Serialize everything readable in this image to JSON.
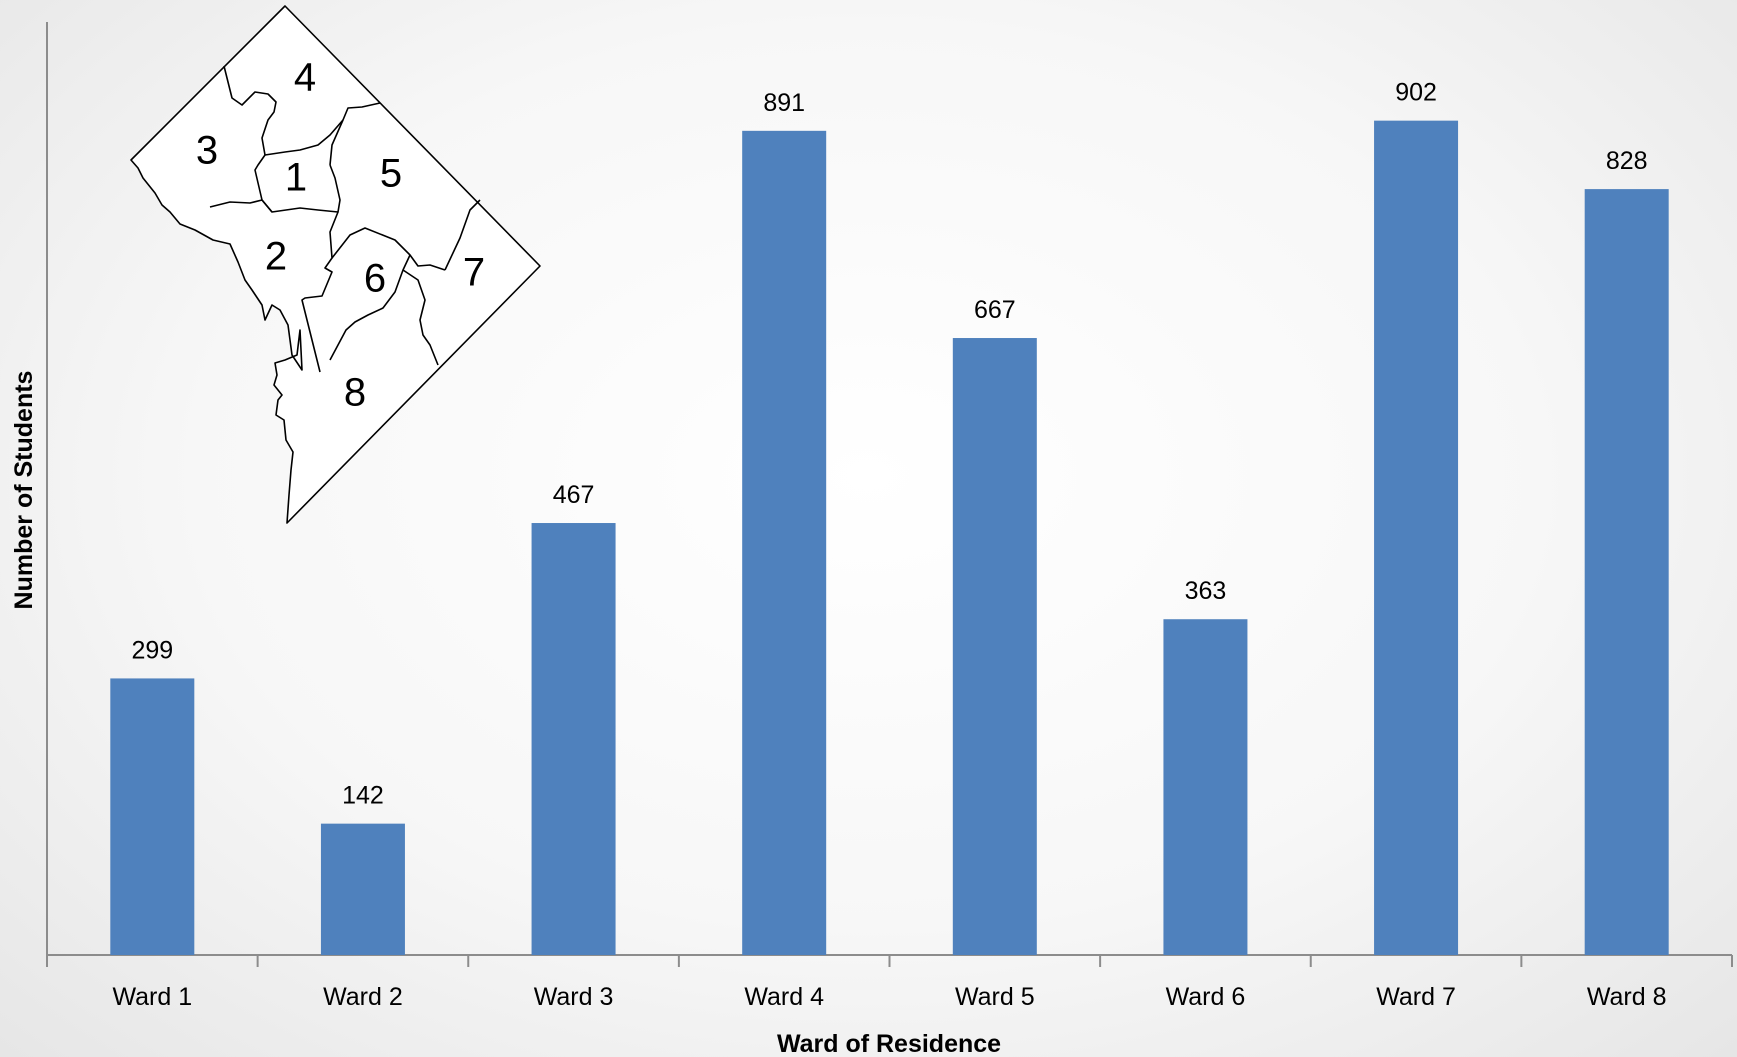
{
  "chart_data": {
    "type": "bar",
    "title": "",
    "xlabel": "Ward of Residence",
    "ylabel": "Number of Students",
    "categories": [
      "Ward 1",
      "Ward 2",
      "Ward 3",
      "Ward 4",
      "Ward 5",
      "Ward 6",
      "Ward 7",
      "Ward 8"
    ],
    "values": [
      299,
      142,
      467,
      891,
      667,
      363,
      902,
      828
    ],
    "data_labels": [
      "299",
      "142",
      "467",
      "891",
      "667",
      "363",
      "902",
      "828"
    ],
    "ylim": [
      0,
      1000
    ],
    "grid": false,
    "legend": "none",
    "bar_color": "#4f81bd",
    "axis_color": "#8c8c8c"
  },
  "inset_map": {
    "ward_numbers": [
      "1",
      "2",
      "3",
      "4",
      "5",
      "6",
      "7",
      "8"
    ]
  }
}
